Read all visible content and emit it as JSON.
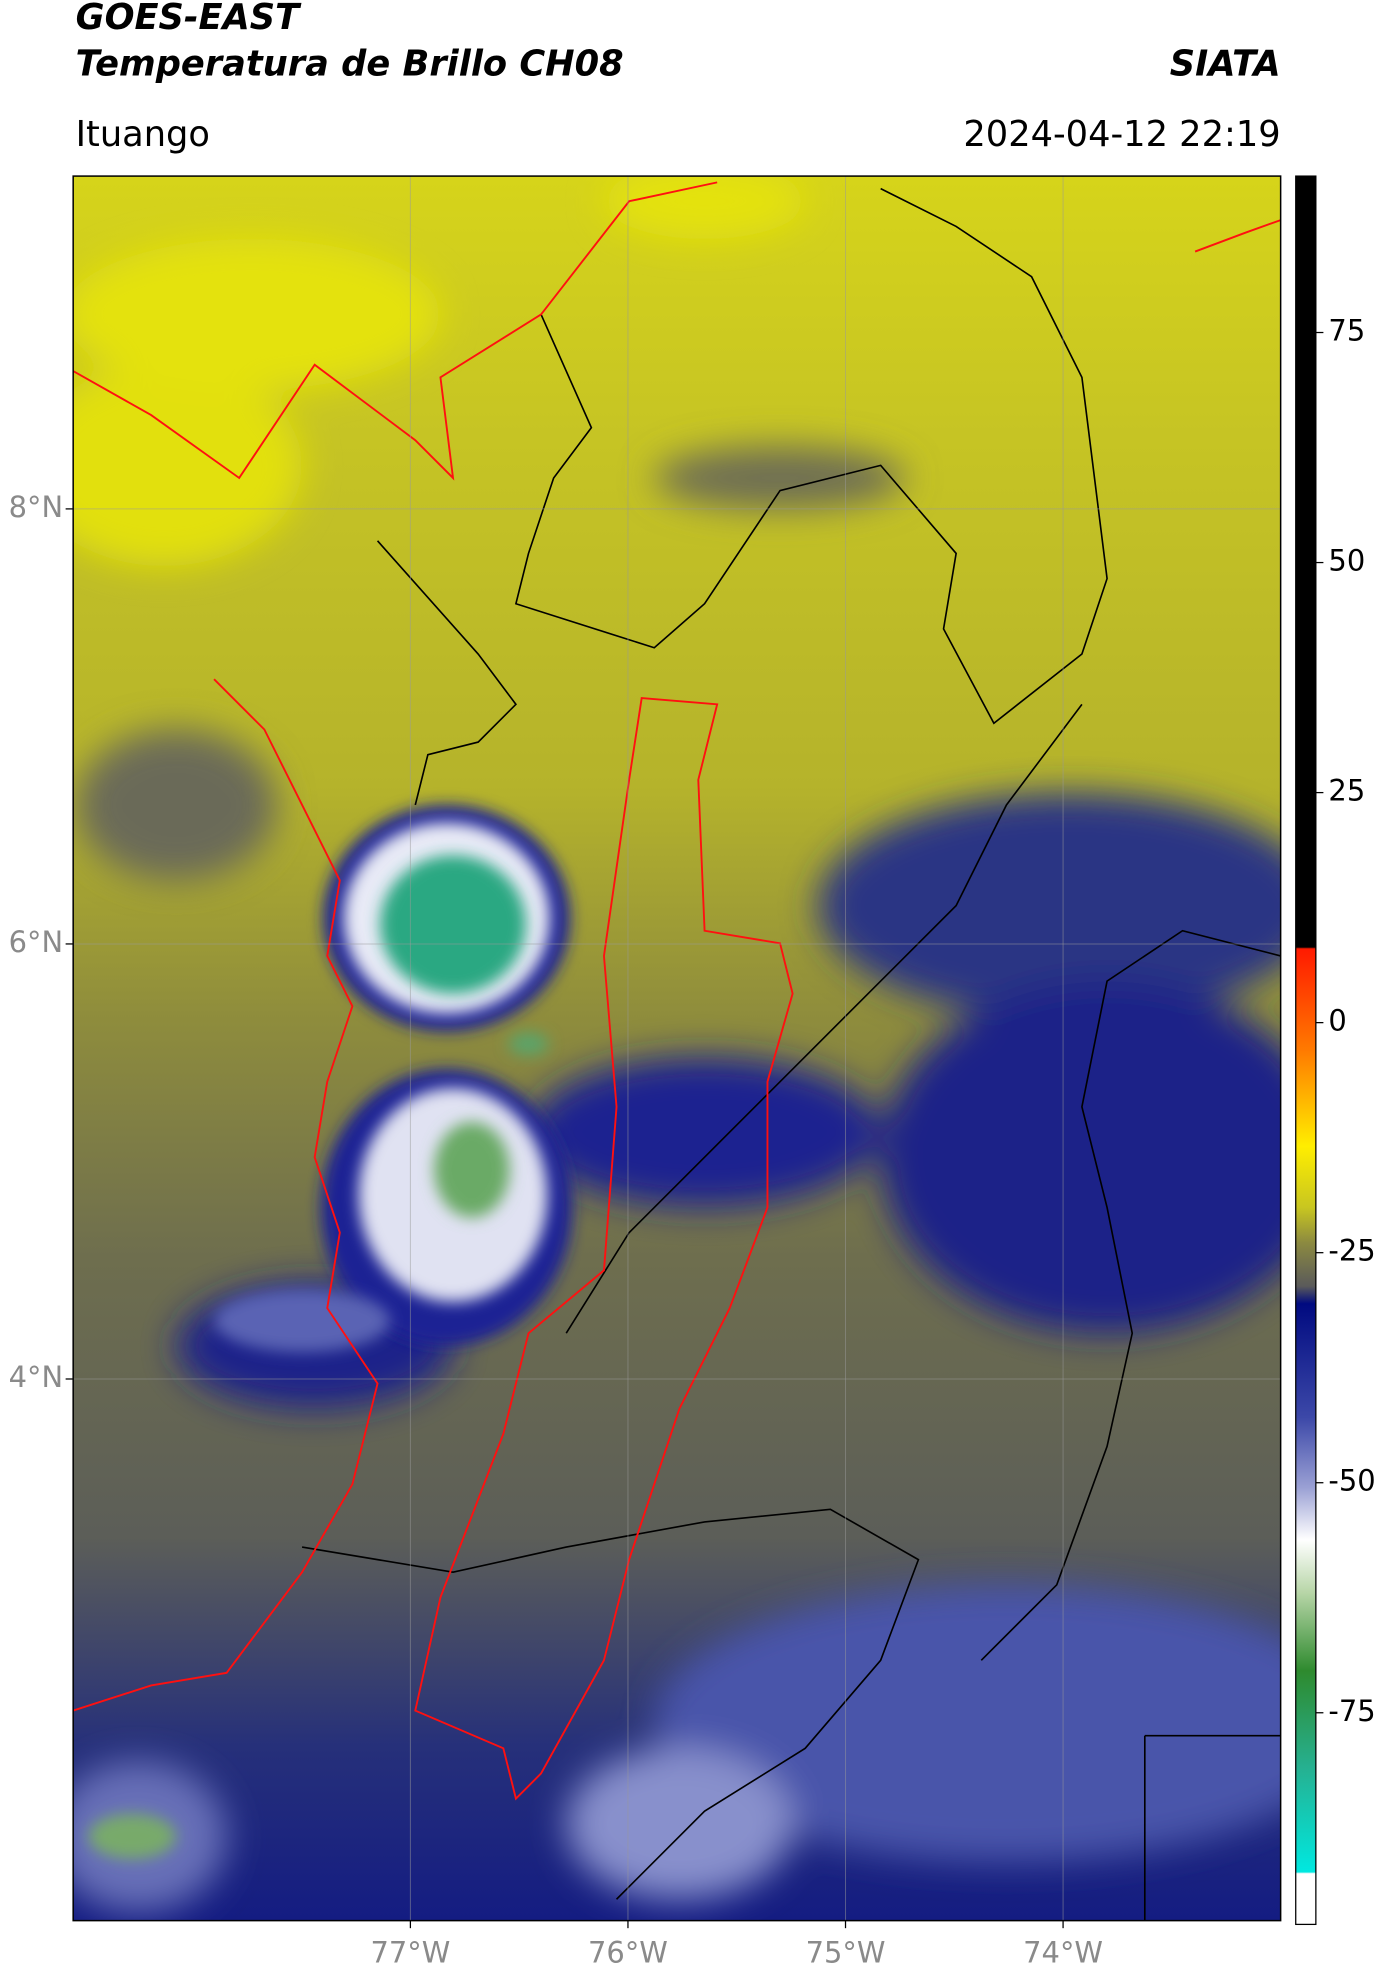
{
  "header": {
    "satellite": "GOES-EAST",
    "product": "Temperatura de Brillo CH08",
    "brand": "SIATA",
    "location": "Ituango",
    "datetime": "2024-04-12 22:19"
  },
  "map": {
    "xlim": [
      -78.55,
      -73.0
    ],
    "ylim": [
      1.51,
      9.53
    ],
    "xticks": [
      {
        "value": -77,
        "label": "77°W"
      },
      {
        "value": -76,
        "label": "76°W"
      },
      {
        "value": -75,
        "label": "75°W"
      },
      {
        "value": -74,
        "label": "74°W"
      }
    ],
    "yticks": [
      {
        "value": 8,
        "label": "8°N"
      },
      {
        "value": 6,
        "label": "6°N"
      },
      {
        "value": 4,
        "label": "4°N"
      }
    ],
    "grid": true
  },
  "colorbar": {
    "ylim": [
      -98,
      92
    ],
    "yticks": [
      75,
      50,
      25,
      0,
      -25,
      -50,
      -75
    ]
  }
}
